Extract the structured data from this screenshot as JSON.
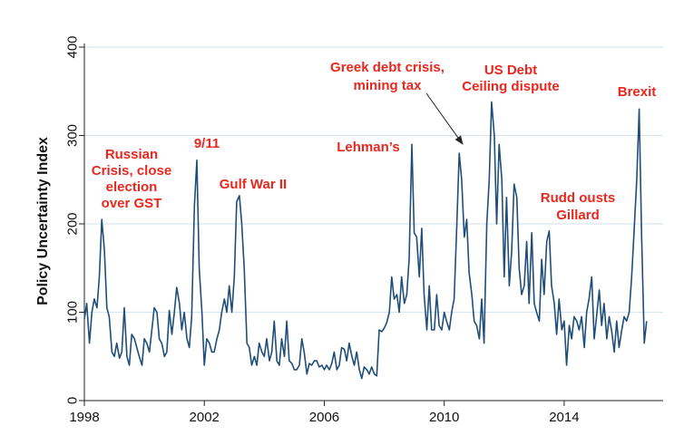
{
  "chart_data": {
    "type": "line",
    "title": "",
    "xlabel": "",
    "ylabel": "Policy Uncertainty Index",
    "xlim": [
      1998,
      2017.3
    ],
    "ylim": [
      0,
      400
    ],
    "x_ticks": [
      "1998",
      "2002",
      "2006",
      "2010",
      "2014"
    ],
    "y_ticks": [
      "0",
      "100",
      "200",
      "300",
      "400"
    ],
    "grid": true,
    "colors": {
      "line": "#1f4e79",
      "annotation": "#e8281f",
      "grid": "#d9e6ef",
      "axis": "#222222"
    },
    "series": [
      {
        "values": [
          [
            1998.0,
            92
          ],
          [
            1998.08,
            110
          ],
          [
            1998.17,
            65
          ],
          [
            1998.25,
            100
          ],
          [
            1998.33,
            115
          ],
          [
            1998.42,
            105
          ],
          [
            1998.5,
            140
          ],
          [
            1998.58,
            205
          ],
          [
            1998.67,
            170
          ],
          [
            1998.75,
            105
          ],
          [
            1998.83,
            95
          ],
          [
            1998.92,
            55
          ],
          [
            1999.0,
            50
          ],
          [
            1999.08,
            65
          ],
          [
            1999.17,
            48
          ],
          [
            1999.25,
            55
          ],
          [
            1999.33,
            105
          ],
          [
            1999.42,
            50
          ],
          [
            1999.5,
            40
          ],
          [
            1999.58,
            75
          ],
          [
            1999.67,
            70
          ],
          [
            1999.75,
            60
          ],
          [
            1999.83,
            50
          ],
          [
            1999.92,
            40
          ],
          [
            2000.0,
            70
          ],
          [
            2000.08,
            65
          ],
          [
            2000.17,
            55
          ],
          [
            2000.25,
            80
          ],
          [
            2000.33,
            105
          ],
          [
            2000.42,
            100
          ],
          [
            2000.5,
            70
          ],
          [
            2000.58,
            65
          ],
          [
            2000.67,
            50
          ],
          [
            2000.75,
            55
          ],
          [
            2000.83,
            102
          ],
          [
            2000.92,
            75
          ],
          [
            2001.0,
            100
          ],
          [
            2001.08,
            128
          ],
          [
            2001.17,
            110
          ],
          [
            2001.25,
            80
          ],
          [
            2001.33,
            100
          ],
          [
            2001.42,
            70
          ],
          [
            2001.5,
            60
          ],
          [
            2001.58,
            95
          ],
          [
            2001.67,
            220
          ],
          [
            2001.75,
            272
          ],
          [
            2001.83,
            150
          ],
          [
            2001.92,
            100
          ],
          [
            2002.0,
            40
          ],
          [
            2002.08,
            70
          ],
          [
            2002.17,
            65
          ],
          [
            2002.25,
            55
          ],
          [
            2002.33,
            55
          ],
          [
            2002.42,
            70
          ],
          [
            2002.5,
            80
          ],
          [
            2002.58,
            100
          ],
          [
            2002.67,
            115
          ],
          [
            2002.75,
            100
          ],
          [
            2002.83,
            130
          ],
          [
            2002.92,
            100
          ],
          [
            2003.0,
            140
          ],
          [
            2003.08,
            225
          ],
          [
            2003.17,
            232
          ],
          [
            2003.25,
            200
          ],
          [
            2003.33,
            150
          ],
          [
            2003.42,
            65
          ],
          [
            2003.5,
            60
          ],
          [
            2003.58,
            40
          ],
          [
            2003.67,
            50
          ],
          [
            2003.75,
            40
          ],
          [
            2003.83,
            65
          ],
          [
            2003.92,
            55
          ],
          [
            2004.0,
            50
          ],
          [
            2004.08,
            70
          ],
          [
            2004.17,
            45
          ],
          [
            2004.25,
            55
          ],
          [
            2004.33,
            90
          ],
          [
            2004.42,
            45
          ],
          [
            2004.5,
            40
          ],
          [
            2004.58,
            70
          ],
          [
            2004.67,
            50
          ],
          [
            2004.75,
            90
          ],
          [
            2004.83,
            45
          ],
          [
            2004.92,
            42
          ],
          [
            2005.0,
            35
          ],
          [
            2005.08,
            35
          ],
          [
            2005.17,
            40
          ],
          [
            2005.25,
            70
          ],
          [
            2005.33,
            55
          ],
          [
            2005.42,
            30
          ],
          [
            2005.5,
            42
          ],
          [
            2005.58,
            40
          ],
          [
            2005.67,
            45
          ],
          [
            2005.75,
            45
          ],
          [
            2005.83,
            38
          ],
          [
            2005.92,
            40
          ],
          [
            2006.0,
            35
          ],
          [
            2006.08,
            40
          ],
          [
            2006.17,
            35
          ],
          [
            2006.25,
            42
          ],
          [
            2006.33,
            55
          ],
          [
            2006.42,
            35
          ],
          [
            2006.5,
            40
          ],
          [
            2006.58,
            60
          ],
          [
            2006.67,
            58
          ],
          [
            2006.75,
            45
          ],
          [
            2006.83,
            65
          ],
          [
            2006.92,
            50
          ],
          [
            2007.0,
            40
          ],
          [
            2007.08,
            55
          ],
          [
            2007.17,
            35
          ],
          [
            2007.25,
            25
          ],
          [
            2007.33,
            38
          ],
          [
            2007.42,
            35
          ],
          [
            2007.5,
            30
          ],
          [
            2007.58,
            38
          ],
          [
            2007.67,
            30
          ],
          [
            2007.75,
            28
          ],
          [
            2007.83,
            80
          ],
          [
            2007.92,
            78
          ],
          [
            2008.0,
            82
          ],
          [
            2008.08,
            88
          ],
          [
            2008.17,
            100
          ],
          [
            2008.25,
            140
          ],
          [
            2008.33,
            115
          ],
          [
            2008.42,
            120
          ],
          [
            2008.5,
            100
          ],
          [
            2008.58,
            140
          ],
          [
            2008.67,
            110
          ],
          [
            2008.75,
            120
          ],
          [
            2008.83,
            160
          ],
          [
            2008.92,
            290
          ],
          [
            2009.0,
            190
          ],
          [
            2009.08,
            185
          ],
          [
            2009.17,
            140
          ],
          [
            2009.25,
            195
          ],
          [
            2009.33,
            120
          ],
          [
            2009.42,
            80
          ],
          [
            2009.5,
            130
          ],
          [
            2009.58,
            80
          ],
          [
            2009.67,
            80
          ],
          [
            2009.75,
            120
          ],
          [
            2009.83,
            85
          ],
          [
            2009.92,
            80
          ],
          [
            2010.0,
            100
          ],
          [
            2010.08,
            90
          ],
          [
            2010.17,
            80
          ],
          [
            2010.25,
            100
          ],
          [
            2010.33,
            115
          ],
          [
            2010.42,
            200
          ],
          [
            2010.5,
            280
          ],
          [
            2010.58,
            250
          ],
          [
            2010.67,
            185
          ],
          [
            2010.75,
            205
          ],
          [
            2010.83,
            145
          ],
          [
            2010.92,
            120
          ],
          [
            2011.0,
            90
          ],
          [
            2011.08,
            85
          ],
          [
            2011.17,
            70
          ],
          [
            2011.25,
            115
          ],
          [
            2011.33,
            65
          ],
          [
            2011.42,
            200
          ],
          [
            2011.5,
            250
          ],
          [
            2011.58,
            338
          ],
          [
            2011.67,
            300
          ],
          [
            2011.75,
            200
          ],
          [
            2011.83,
            290
          ],
          [
            2011.92,
            250
          ],
          [
            2012.0,
            140
          ],
          [
            2012.08,
            230
          ],
          [
            2012.17,
            130
          ],
          [
            2012.25,
            170
          ],
          [
            2012.33,
            245
          ],
          [
            2012.42,
            230
          ],
          [
            2012.5,
            150
          ],
          [
            2012.58,
            120
          ],
          [
            2012.67,
            130
          ],
          [
            2012.75,
            180
          ],
          [
            2012.83,
            110
          ],
          [
            2012.92,
            190
          ],
          [
            2013.0,
            110
          ],
          [
            2013.08,
            100
          ],
          [
            2013.17,
            90
          ],
          [
            2013.25,
            160
          ],
          [
            2013.33,
            120
          ],
          [
            2013.42,
            180
          ],
          [
            2013.5,
            192
          ],
          [
            2013.58,
            130
          ],
          [
            2013.67,
            110
          ],
          [
            2013.75,
            75
          ],
          [
            2013.83,
            115
          ],
          [
            2013.92,
            80
          ],
          [
            2014.0,
            90
          ],
          [
            2014.08,
            40
          ],
          [
            2014.17,
            85
          ],
          [
            2014.25,
            70
          ],
          [
            2014.33,
            95
          ],
          [
            2014.42,
            90
          ],
          [
            2014.5,
            80
          ],
          [
            2014.58,
            95
          ],
          [
            2014.67,
            60
          ],
          [
            2014.75,
            100
          ],
          [
            2014.83,
            115
          ],
          [
            2014.92,
            140
          ],
          [
            2015.0,
            70
          ],
          [
            2015.08,
            95
          ],
          [
            2015.17,
            125
          ],
          [
            2015.25,
            85
          ],
          [
            2015.33,
            110
          ],
          [
            2015.42,
            70
          ],
          [
            2015.5,
            95
          ],
          [
            2015.58,
            80
          ],
          [
            2015.67,
            55
          ],
          [
            2015.75,
            90
          ],
          [
            2015.83,
            60
          ],
          [
            2015.92,
            80
          ],
          [
            2016.0,
            95
          ],
          [
            2016.08,
            90
          ],
          [
            2016.17,
            100
          ],
          [
            2016.25,
            140
          ],
          [
            2016.33,
            190
          ],
          [
            2016.42,
            250
          ],
          [
            2016.5,
            330
          ],
          [
            2016.58,
            190
          ],
          [
            2016.67,
            65
          ],
          [
            2016.75,
            90
          ]
        ]
      }
    ],
    "annotations": [
      {
        "lines": [
          "Russian",
          "Crisis, close",
          "election",
          "over GST"
        ]
      },
      {
        "lines": [
          "9/11"
        ]
      },
      {
        "lines": [
          "Gulf War II"
        ]
      },
      {
        "lines": [
          "Lehman’s"
        ]
      },
      {
        "lines": [
          "Greek debt crisis,",
          "mining tax"
        ]
      },
      {
        "lines": [
          "US Debt",
          "Ceiling dispute"
        ]
      },
      {
        "lines": [
          "Rudd ousts",
          "Gillard"
        ]
      },
      {
        "lines": [
          "Brexit"
        ]
      }
    ]
  }
}
